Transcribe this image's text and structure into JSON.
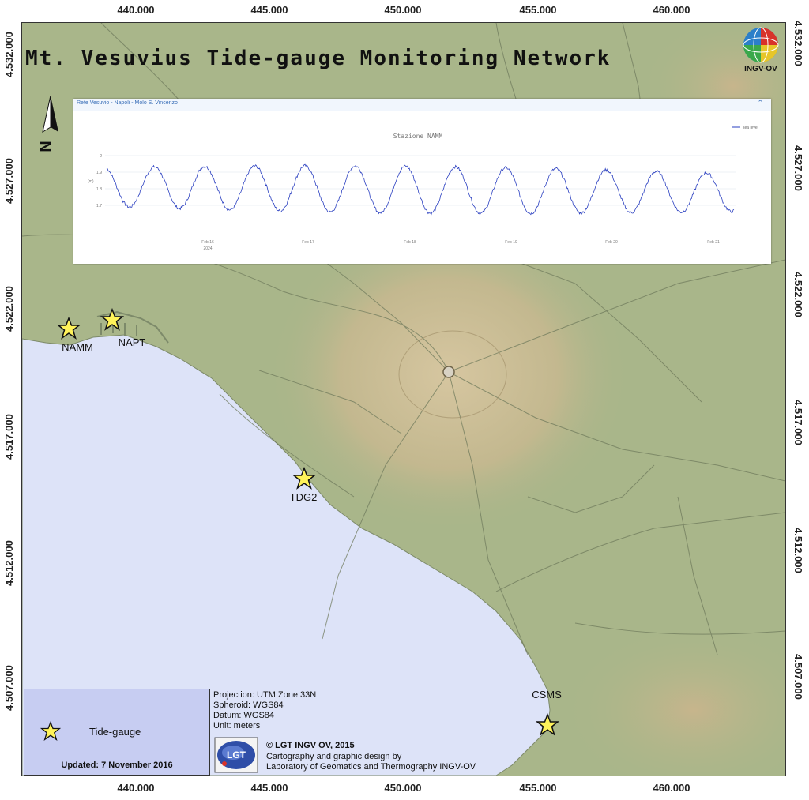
{
  "map": {
    "title": "Mt. Vesuvius Tide-gauge Monitoring Network",
    "north_letter": "N",
    "logo_text": "INGV-OV",
    "x_ticks": [
      "440.000",
      "445.000",
      "450.000",
      "455.000",
      "460.000"
    ],
    "y_ticks": [
      "4.532.000",
      "4.527.000",
      "4.522.000",
      "4.517.000",
      "4.512.000",
      "4.507.000"
    ],
    "colors": {
      "sea": "#dde3f8",
      "land": "#a9b68a",
      "volcano": "#c9b990",
      "star": "#fff35a",
      "legend_bg": "#c7cdf2"
    }
  },
  "inset": {
    "header_title": "Rete Vesuvio - Napoli - Molo S. Vincenzo",
    "chart_title": "Stazione NAMM",
    "legend_label": "sea level",
    "x_labels": [
      "Feb 16",
      "Feb 17",
      "Feb 18",
      "Feb 19",
      "Feb 20",
      "Feb 21"
    ],
    "x_year": "2024",
    "y_ticks": [
      "2",
      "1.9",
      "1.8",
      "1.7"
    ],
    "y_unit": "(m)",
    "line_color": "#2a3fc0"
  },
  "chart_data": {
    "type": "line",
    "title": "Stazione NAMM",
    "ylabel": "(m)",
    "x_start": "Feb 16 2024",
    "x_end": "Feb 21 2024",
    "series": [
      {
        "name": "sea level",
        "period_hours": 12.4
      }
    ],
    "ylim": [
      1.68,
      2.02
    ]
  },
  "stations": [
    {
      "name": "NAMM"
    },
    {
      "name": "NAPT"
    },
    {
      "name": "TDG2"
    },
    {
      "name": "CSMS"
    }
  ],
  "legend": {
    "item_label": "Tide-gauge",
    "updated": "Updated: 7 November 2016"
  },
  "credits": {
    "projection": "Projection: UTM Zone 33N",
    "spheroid": "Spheroid: WGS84",
    "datum": "Datum: WGS84",
    "unit": "Unit: meters",
    "lgt_logo_text": "LGT",
    "copyright": "© LGT INGV OV, 2015",
    "cartography_1": "Cartography and graphic design by",
    "cartography_2": "Laboratory of Geomatics and Thermography INGV-OV"
  }
}
